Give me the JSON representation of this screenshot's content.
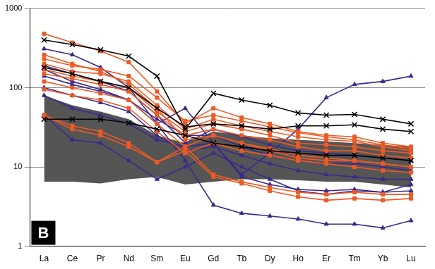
{
  "chart_data": {
    "type": "line",
    "annotation": "B",
    "categories": [
      "La",
      "Ce",
      "Pr",
      "Nd",
      "Sm",
      "Eu",
      "Gd",
      "Tb",
      "Dy",
      "Ho",
      "Er",
      "Tm",
      "Yb",
      "Lu"
    ],
    "log": "y",
    "ylim": [
      1,
      1000
    ],
    "yticks": [
      1,
      10,
      100,
      1000
    ],
    "grid": true,
    "shaded_range": {
      "color": "#555555",
      "upper": [
        80,
        60,
        50,
        40,
        25,
        20,
        28,
        25,
        23,
        22,
        21,
        20,
        19,
        18
      ],
      "lower": [
        6.5,
        6.5,
        6.2,
        7,
        7.5,
        6,
        6.5,
        7,
        7,
        6.8,
        6.5,
        6.5,
        6,
        5.5
      ]
    },
    "series": [
      {
        "color": "#000000",
        "marker": "cross",
        "values": [
          400,
          350,
          300,
          250,
          140,
          30,
          85,
          70,
          60,
          48,
          45,
          46,
          40,
          35
        ]
      },
      {
        "color": "#000000",
        "marker": "cross",
        "values": [
          180,
          150,
          120,
          100,
          55,
          32,
          35,
          33,
          30,
          33,
          33,
          34,
          30,
          28
        ]
      },
      {
        "color": "#000000",
        "marker": "cross",
        "values": [
          40,
          40,
          40,
          36,
          30,
          25,
          20,
          18,
          16,
          15,
          14,
          14,
          13,
          12
        ]
      },
      {
        "color": "#ee5a24",
        "marker": "square",
        "values": [
          480,
          370,
          290,
          210,
          90,
          35,
          55,
          42,
          35,
          28,
          25,
          24,
          20,
          18
        ]
      },
      {
        "color": "#ee5a24",
        "marker": "square",
        "values": [
          230,
          190,
          170,
          140,
          75,
          38,
          45,
          38,
          32,
          27,
          24,
          22,
          19,
          17
        ]
      },
      {
        "color": "#ee5a24",
        "marker": "square",
        "values": [
          200,
          160,
          150,
          120,
          60,
          30,
          40,
          33,
          28,
          24,
          22,
          21,
          18,
          16
        ]
      },
      {
        "color": "#ee5a24",
        "marker": "square",
        "values": [
          150,
          130,
          110,
          90,
          45,
          25,
          30,
          25,
          22,
          18,
          16,
          16,
          14,
          13
        ]
      },
      {
        "color": "#ee5a24",
        "marker": "square",
        "values": [
          120,
          100,
          85,
          70,
          35,
          18,
          25,
          20,
          17,
          14,
          13,
          12,
          11,
          10
        ]
      },
      {
        "color": "#ee5a24",
        "marker": "square",
        "values": [
          95,
          80,
          70,
          55,
          28,
          15,
          20,
          16,
          14,
          12,
          11,
          10,
          9,
          8.5
        ]
      },
      {
        "color": "#ee5a24",
        "marker": "square",
        "values": [
          45,
          33,
          28,
          20,
          11.5,
          16,
          7.5,
          6.2,
          5,
          4.2,
          3.8,
          4,
          3.8,
          4
        ]
      },
      {
        "color": "#ee5a24",
        "marker": "square",
        "values": [
          45,
          30,
          25,
          18,
          11.5,
          18,
          8,
          6.5,
          5.5,
          4.8,
          4.5,
          4.8,
          4.5,
          4.5
        ]
      },
      {
        "color": "#ee5a24",
        "marker": "square",
        "values": [
          170,
          140,
          120,
          100,
          50,
          28,
          35,
          30,
          25,
          20,
          19,
          18,
          16,
          15
        ]
      },
      {
        "color": "#ee5a24",
        "marker": "square",
        "values": [
          260,
          200,
          160,
          110,
          55,
          22,
          25,
          20,
          16,
          13,
          12,
          12,
          11,
          10
        ]
      },
      {
        "color": "#3a2a8c",
        "marker": "triangle",
        "values": [
          310,
          260,
          180,
          100,
          35,
          55,
          20,
          8,
          15,
          30,
          75,
          110,
          120,
          140
        ]
      },
      {
        "color": "#3a2a8c",
        "marker": "triangle",
        "values": [
          170,
          120,
          95,
          70,
          35,
          12,
          3.3,
          2.6,
          2.4,
          2.2,
          1.9,
          1.9,
          1.7,
          2.1
        ]
      },
      {
        "color": "#3a2a8c",
        "marker": "triangle",
        "values": [
          80,
          55,
          45,
          35,
          22,
          18,
          20,
          7.5,
          6,
          5.2,
          5,
          5.2,
          4.8,
          6
        ]
      },
      {
        "color": "#3a2a8c",
        "marker": "triangle",
        "values": [
          45,
          22,
          20,
          12,
          7,
          10,
          15,
          10,
          7,
          5,
          4.5,
          5,
          4.8,
          5
        ]
      },
      {
        "color": "#3a2a8c",
        "marker": "triangle",
        "values": [
          140,
          110,
          90,
          70,
          40,
          25,
          25,
          18,
          14,
          12,
          11,
          11,
          10,
          9
        ]
      },
      {
        "color": "#3a2a8c",
        "marker": "triangle",
        "values": [
          100,
          80,
          65,
          50,
          25,
          16,
          18,
          14,
          11,
          9,
          8,
          7.5,
          7,
          7
        ]
      },
      {
        "color": "#3a2a8c",
        "marker": "triangle",
        "values": [
          190,
          150,
          120,
          90,
          45,
          20,
          30,
          24,
          19,
          16,
          15,
          14,
          13,
          12
        ]
      }
    ]
  }
}
